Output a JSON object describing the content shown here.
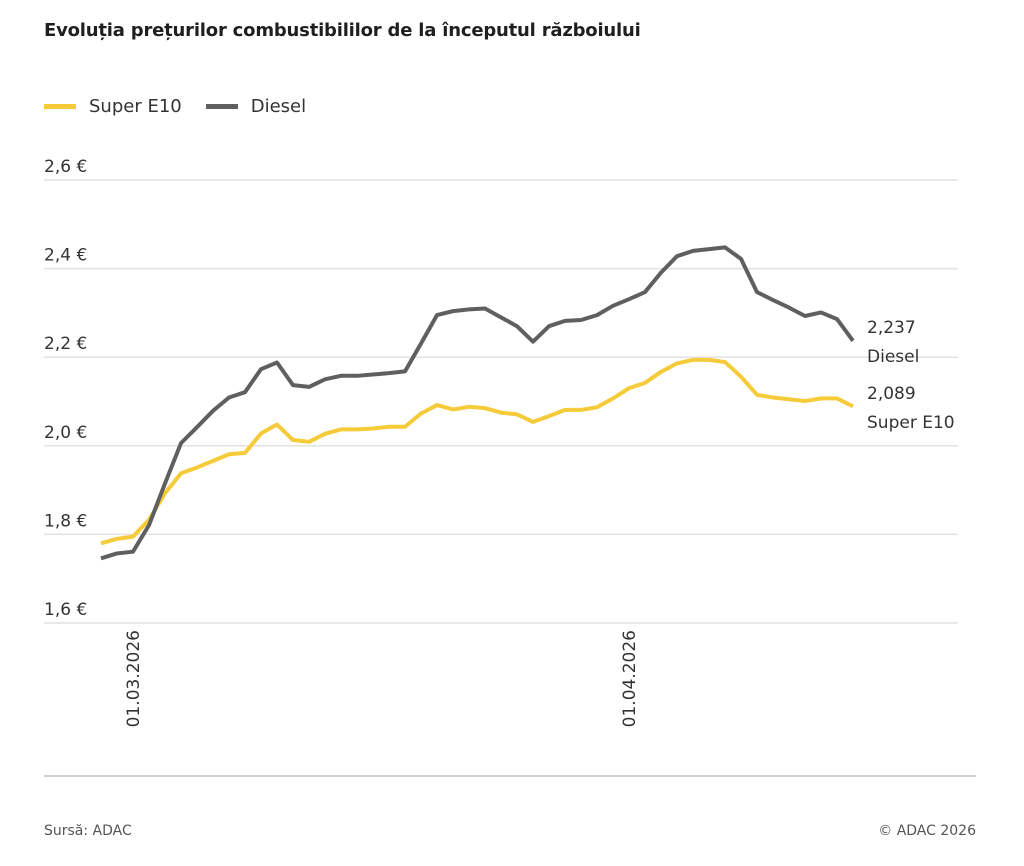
{
  "chart_data": {
    "type": "line",
    "title": "Evoluția prețurilor combustibililor de la începutul războiului",
    "xlabel": "",
    "ylabel": "",
    "x_unit": "days relative to 01.03.2026",
    "x": [
      -2,
      -1,
      0,
      1,
      2,
      3,
      4,
      5,
      6,
      7,
      8,
      9,
      10,
      11,
      12,
      13,
      14,
      15,
      16,
      17,
      18,
      19,
      20,
      21,
      22,
      23,
      24,
      25,
      26,
      27,
      28,
      29,
      30,
      31,
      32,
      33,
      34,
      35,
      36,
      37,
      38,
      39,
      40,
      41,
      42,
      43,
      44,
      45
    ],
    "x_ticks": [
      {
        "x": 0,
        "label": "01.03.2026"
      },
      {
        "x": 31,
        "label": "01.04.2026"
      }
    ],
    "ylim": [
      1.6,
      2.6
    ],
    "y_ticks": [
      {
        "v": 1.6,
        "label": "1,6 €"
      },
      {
        "v": 1.8,
        "label": "1,8 €"
      },
      {
        "v": 2.0,
        "label": "2,0 €"
      },
      {
        "v": 2.2,
        "label": "2,2 €"
      },
      {
        "v": 2.4,
        "label": "2,4 €"
      },
      {
        "v": 2.6,
        "label": "2,6 €"
      }
    ],
    "grid": true,
    "legend_position": "top-left",
    "series": [
      {
        "name": "Super E10",
        "color": "#f5cb3a",
        "end_value_label": "2,089",
        "end_name_label": "Super E10",
        "values": [
          1.78,
          1.79,
          1.795,
          1.833,
          1.893,
          1.938,
          1.951,
          1.966,
          1.981,
          1.984,
          2.028,
          2.048,
          2.013,
          2.009,
          2.027,
          2.037,
          2.037,
          2.039,
          2.043,
          2.043,
          2.073,
          2.092,
          2.082,
          2.088,
          2.085,
          2.075,
          2.071,
          2.054,
          2.067,
          2.081,
          2.081,
          2.087,
          2.107,
          2.13,
          2.142,
          2.167,
          2.186,
          2.194,
          2.194,
          2.189,
          2.156,
          2.115,
          2.109,
          2.105,
          2.101,
          2.107,
          2.107,
          2.089
        ]
      },
      {
        "name": "Diesel",
        "color": "#5f5f5f",
        "end_value_label": "2,237",
        "end_name_label": "Diesel",
        "values": [
          1.746,
          1.757,
          1.761,
          1.821,
          1.915,
          2.006,
          2.042,
          2.079,
          2.109,
          2.121,
          2.173,
          2.188,
          2.137,
          2.133,
          2.15,
          2.158,
          2.158,
          2.161,
          2.164,
          2.168,
          2.231,
          2.295,
          2.304,
          2.308,
          2.31,
          2.29,
          2.27,
          2.235,
          2.27,
          2.282,
          2.284,
          2.295,
          2.316,
          2.331,
          2.347,
          2.391,
          2.428,
          2.44,
          2.444,
          2.448,
          2.422,
          2.347,
          2.329,
          2.312,
          2.293,
          2.301,
          2.286,
          2.237
        ]
      }
    ]
  },
  "footer": {
    "source": "Sursă: ADAC",
    "copyright": "© ADAC 2026"
  }
}
